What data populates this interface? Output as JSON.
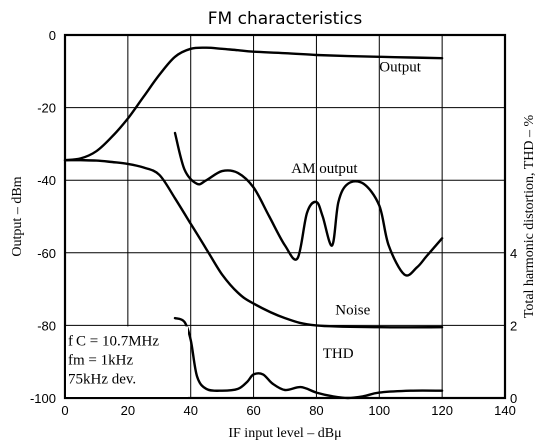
{
  "chart_data": {
    "type": "line",
    "title": "FM characteristics",
    "xlabel": "IF input level – dBμ",
    "ylabel": "Output – dBm",
    "y2label": "Total harmonic distortion, THD – %",
    "xlim": [
      0,
      140
    ],
    "ylim": [
      -100,
      0
    ],
    "y2lim": [
      0,
      10
    ],
    "grid": true,
    "x_ticks": [
      "0",
      "20",
      "40",
      "60",
      "80",
      "100",
      "120",
      "140"
    ],
    "y_ticks": [
      "0",
      "-20",
      "-40",
      "-60",
      "-80",
      "-100"
    ],
    "y2_ticks": [
      "0",
      "2",
      "4"
    ],
    "annotations": [
      "f C = 10.7MHz",
      "fm = 1kHz",
      "75kHz dev."
    ],
    "series": [
      {
        "name": "Output",
        "axis": "left",
        "x": [
          0,
          5,
          10,
          15,
          20,
          25,
          30,
          35,
          40,
          45,
          50,
          55,
          60,
          70,
          80,
          90,
          100,
          110,
          120
        ],
        "y": [
          -34.5,
          -34,
          -32,
          -28,
          -23,
          -17,
          -11,
          -6,
          -3.8,
          -3.5,
          -3.8,
          -4.2,
          -4.6,
          -5,
          -5.5,
          -5.8,
          -6,
          -6.2,
          -6.4
        ]
      },
      {
        "name": "AM output",
        "axis": "left",
        "x": [
          35,
          38,
          42,
          45,
          50,
          55,
          60,
          65,
          70,
          74,
          77,
          80,
          82,
          85,
          87,
          90,
          95,
          100,
          103,
          108,
          112,
          115,
          120
        ],
        "y": [
          -27,
          -37,
          -41,
          -40,
          -37.5,
          -38,
          -42,
          -50,
          -58,
          -61.5,
          -49,
          -46,
          -50,
          -58,
          -46,
          -41,
          -41,
          -47,
          -58,
          -66,
          -64,
          -61,
          -56
        ]
      },
      {
        "name": "Noise",
        "axis": "left",
        "x": [
          0,
          5,
          10,
          15,
          20,
          25,
          30,
          35,
          40,
          45,
          50,
          55,
          60,
          70,
          80,
          100,
          120
        ],
        "y": [
          -34.5,
          -34.5,
          -34.6,
          -35,
          -35.5,
          -36.5,
          -38.5,
          -45,
          -52,
          -59,
          -66,
          -71,
          -74,
          -78,
          -80,
          -80.5,
          -80.5
        ]
      },
      {
        "name": "THD",
        "axis": "right",
        "x": [
          35,
          38,
          40,
          42,
          45,
          50,
          55,
          58,
          60,
          63,
          66,
          70,
          75,
          80,
          85,
          90,
          95,
          100,
          110,
          120
        ],
        "y": [
          2.2,
          2.1,
          1.6,
          0.6,
          0.25,
          0.2,
          0.25,
          0.45,
          0.65,
          0.65,
          0.4,
          0.22,
          0.3,
          0.15,
          0.05,
          0.0,
          0.05,
          0.15,
          0.2,
          0.2
        ]
      }
    ]
  }
}
